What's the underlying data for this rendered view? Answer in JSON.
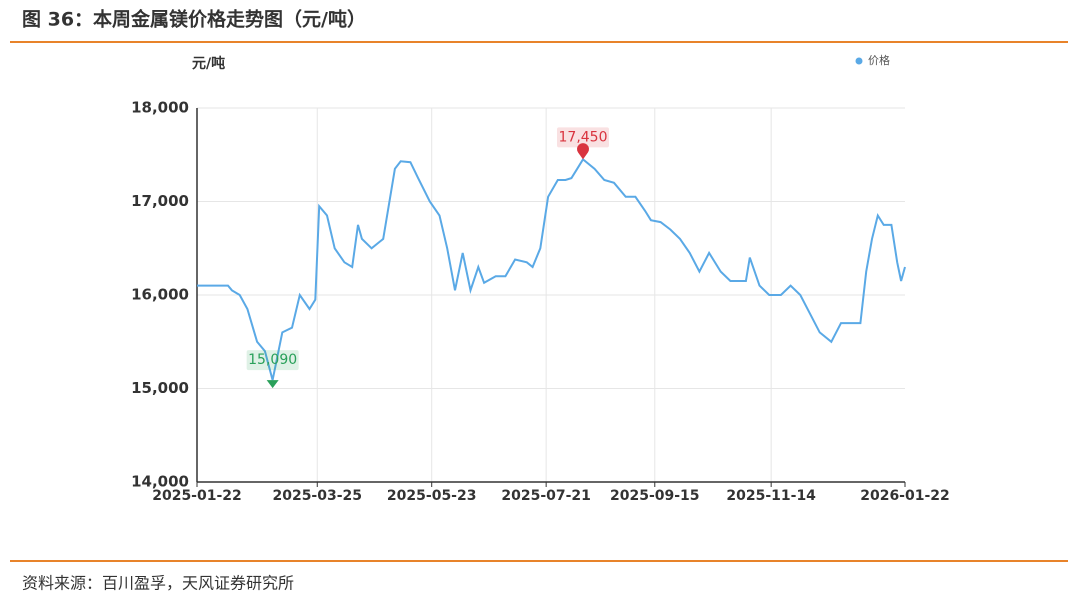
{
  "chart_data": {
    "type": "line",
    "title": "图 36：本周金属镁价格走势图（元/吨）",
    "y_label": "元/吨",
    "source": "资料来源：百川盈孚，天风证券研究所",
    "x": [
      "2025-01-22",
      "2025-02-07",
      "2025-02-09",
      "2025-02-13",
      "2025-02-17",
      "2025-02-22",
      "2025-02-26",
      "2025-03-02",
      "2025-03-07",
      "2025-03-12",
      "2025-03-16",
      "2025-03-21",
      "2025-03-24",
      "2025-03-26",
      "2025-03-30",
      "2025-04-03",
      "2025-04-08",
      "2025-04-12",
      "2025-04-15",
      "2025-04-17",
      "2025-04-22",
      "2025-04-28",
      "2025-05-04",
      "2025-05-07",
      "2025-05-12",
      "2025-05-16",
      "2025-05-22",
      "2025-05-27",
      "2025-05-31",
      "2025-06-04",
      "2025-06-08",
      "2025-06-12",
      "2025-06-16",
      "2025-06-19",
      "2025-06-25",
      "2025-06-30",
      "2025-07-05",
      "2025-07-11",
      "2025-07-14",
      "2025-07-18",
      "2025-07-22",
      "2025-07-27",
      "2025-07-31",
      "2025-08-03",
      "2025-08-06",
      "2025-08-09",
      "2025-08-15",
      "2025-08-20",
      "2025-08-25",
      "2025-08-31",
      "2025-09-05",
      "2025-09-10",
      "2025-09-13",
      "2025-09-18",
      "2025-09-23",
      "2025-09-28",
      "2025-10-03",
      "2025-10-08",
      "2025-10-13",
      "2025-10-19",
      "2025-10-24",
      "2025-11-01",
      "2025-11-03",
      "2025-11-08",
      "2025-11-13",
      "2025-11-19",
      "2025-11-24",
      "2025-11-29",
      "2025-12-04",
      "2025-12-09",
      "2025-12-15",
      "2025-12-20",
      "2025-12-30",
      "2026-01-02",
      "2026-01-05",
      "2026-01-08",
      "2026-01-11",
      "2026-01-15",
      "2026-01-18",
      "2026-01-20",
      "2026-01-22"
    ],
    "series": [
      {
        "name": "价格",
        "color": "#5aa9e6",
        "values": [
          16100,
          16100,
          16050,
          16000,
          15850,
          15500,
          15400,
          15090,
          15600,
          15650,
          16000,
          15850,
          15950,
          16950,
          16850,
          16500,
          16350,
          16300,
          16750,
          16600,
          16500,
          16600,
          17350,
          17430,
          17420,
          17250,
          17000,
          16850,
          16500,
          16050,
          16450,
          16050,
          16300,
          16130,
          16200,
          16200,
          16380,
          16350,
          16300,
          16500,
          17050,
          17230,
          17230,
          17250,
          17350,
          17450,
          17350,
          17230,
          17200,
          17050,
          17050,
          16900,
          16800,
          16780,
          16700,
          16600,
          16450,
          16250,
          16450,
          16250,
          16150,
          16150,
          16400,
          16100,
          16000,
          16000,
          16100,
          16000,
          15800,
          15600,
          15500,
          15700,
          15700,
          16250,
          16600,
          16850,
          16750,
          16750,
          16350,
          16150,
          16300
        ]
      }
    ],
    "annotations": [
      {
        "x": "2025-08-09",
        "value": 17450,
        "label": "17,450",
        "color": "#d9343f"
      },
      {
        "x": "2025-03-02",
        "value": 15090,
        "label": "15,090",
        "color": "#2aa05a"
      }
    ],
    "xlim": [
      "2025-01-22",
      "2026-01-22"
    ],
    "xticks": [
      "2025-01-22",
      "2025-03-25",
      "2025-05-23",
      "2025-07-21",
      "2025-09-15",
      "2025-11-14",
      "2026-01-22"
    ],
    "ylim": [
      14000,
      18000
    ],
    "yticks": [
      {
        "value": 14000,
        "label": "14,000"
      },
      {
        "value": 15000,
        "label": "15,000"
      },
      {
        "value": 16000,
        "label": "16,000"
      },
      {
        "value": 17000,
        "label": "17,000"
      },
      {
        "value": 18000,
        "label": "18,000"
      }
    ],
    "grid": true,
    "legend": "top-right"
  }
}
